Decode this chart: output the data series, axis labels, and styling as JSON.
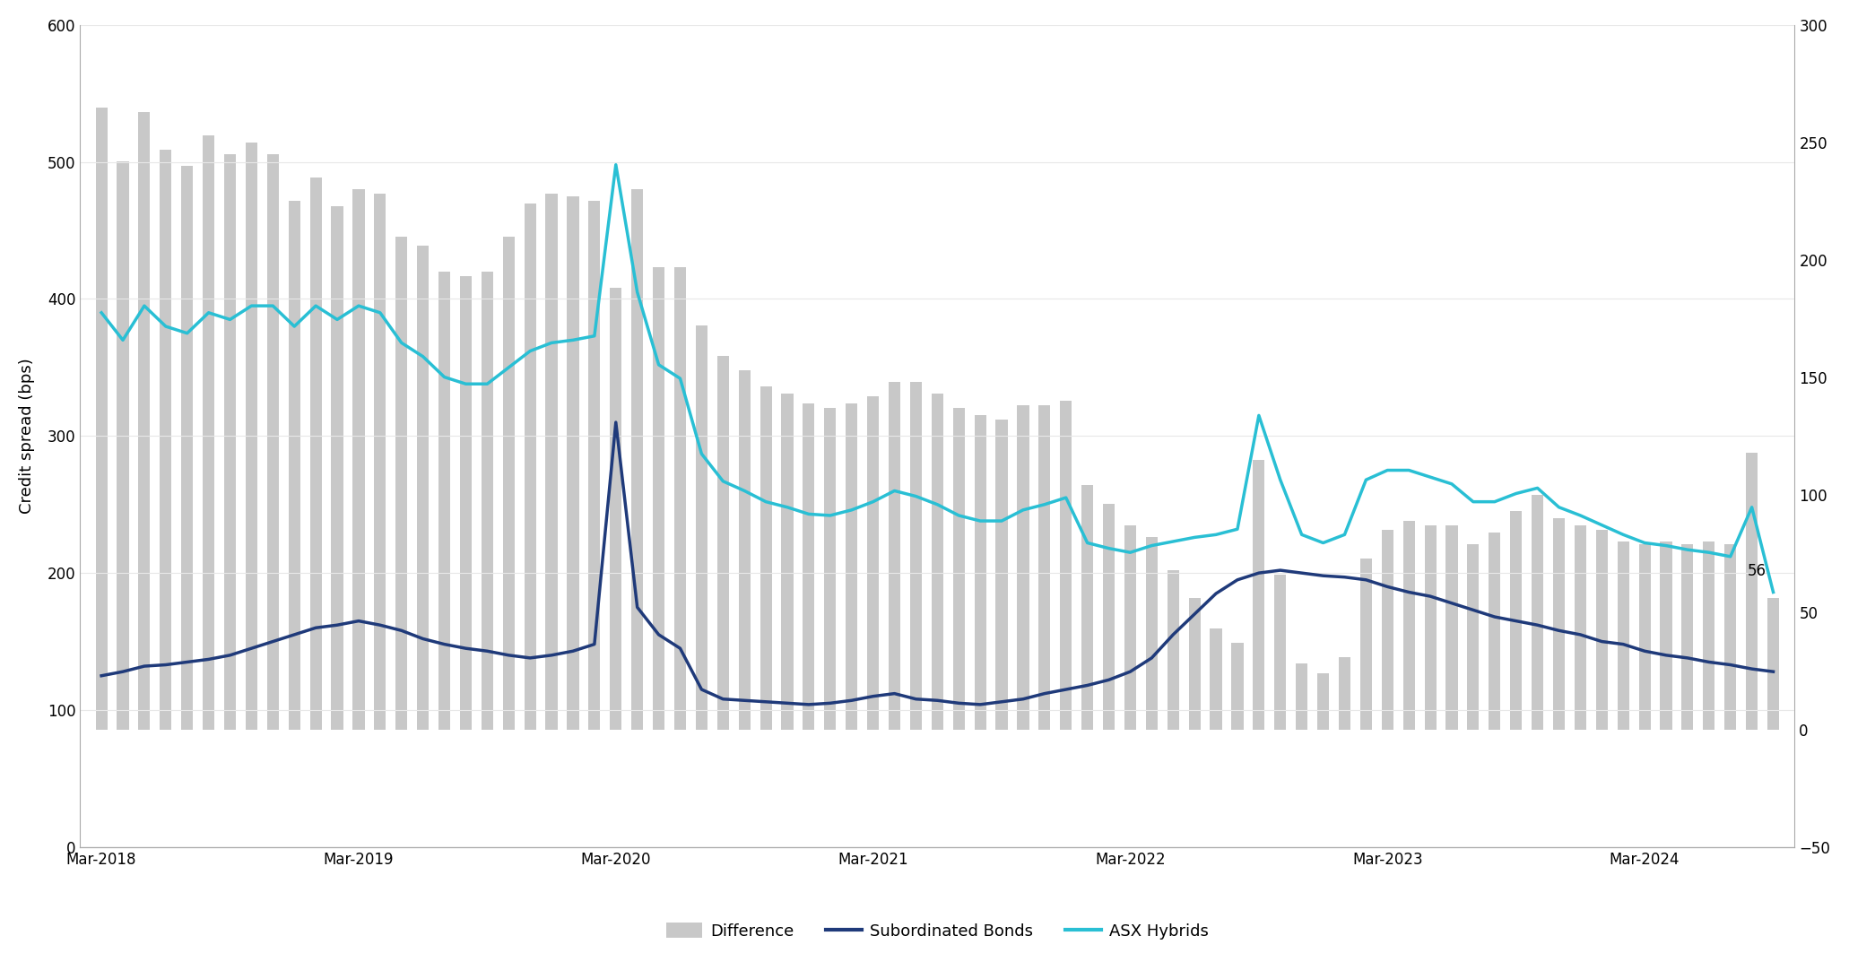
{
  "ylabel_left": "Credit spread (bps)",
  "left_ylim": [
    0,
    600
  ],
  "right_ylim": [
    -50,
    300
  ],
  "bar_color": "#c8c8c8",
  "bond_color": "#1f3a7a",
  "hybrid_color": "#29bfd4",
  "annotation_value": "56",
  "xtick_labels": [
    "Mar-2018",
    "Mar-2019",
    "Mar-2020",
    "Mar-2021",
    "Mar-2022",
    "Mar-2023",
    "Mar-2024"
  ],
  "left_yticks": [
    0,
    100,
    200,
    300,
    400,
    500,
    600
  ],
  "right_yticks": [
    -50,
    0,
    50,
    100,
    150,
    200,
    250,
    300
  ],
  "subordinated_bonds": [
    125,
    128,
    132,
    133,
    135,
    137,
    140,
    145,
    150,
    155,
    160,
    162,
    165,
    162,
    158,
    152,
    148,
    145,
    143,
    140,
    138,
    140,
    143,
    148,
    310,
    175,
    155,
    145,
    115,
    108,
    107,
    106,
    105,
    104,
    105,
    107,
    110,
    112,
    108,
    107,
    105,
    104,
    106,
    108,
    112,
    115,
    118,
    122,
    128,
    138,
    155,
    170,
    185,
    195,
    200,
    202,
    200,
    198,
    197,
    195,
    190,
    186,
    183,
    178,
    173,
    168,
    165,
    162,
    158,
    155,
    150,
    148,
    143,
    140,
    138,
    135,
    133,
    130,
    128
  ],
  "asx_hybrids": [
    390,
    370,
    395,
    380,
    375,
    390,
    385,
    395,
    395,
    380,
    395,
    385,
    395,
    390,
    368,
    358,
    343,
    338,
    338,
    350,
    362,
    368,
    370,
    373,
    498,
    405,
    352,
    342,
    287,
    267,
    260,
    252,
    248,
    243,
    242,
    246,
    252,
    260,
    256,
    250,
    242,
    238,
    238,
    246,
    250,
    255,
    222,
    218,
    215,
    220,
    223,
    226,
    228,
    232,
    315,
    268,
    228,
    222,
    228,
    268,
    275,
    275,
    270,
    265,
    252,
    252,
    258,
    262,
    248,
    242,
    235,
    228,
    222,
    220,
    217,
    215,
    212,
    248,
    186
  ],
  "difference": [
    265,
    242,
    263,
    247,
    240,
    253,
    245,
    250,
    245,
    225,
    235,
    223,
    230,
    228,
    210,
    206,
    195,
    193,
    195,
    210,
    224,
    228,
    227,
    225,
    188,
    230,
    197,
    197,
    172,
    159,
    153,
    146,
    143,
    139,
    137,
    139,
    142,
    148,
    148,
    143,
    137,
    134,
    132,
    138,
    138,
    140,
    104,
    96,
    87,
    82,
    68,
    56,
    43,
    37,
    115,
    66,
    28,
    24,
    31,
    73,
    85,
    89,
    87,
    87,
    79,
    84,
    93,
    100,
    90,
    87,
    85,
    80,
    79,
    80,
    79,
    80,
    79,
    118,
    56
  ]
}
